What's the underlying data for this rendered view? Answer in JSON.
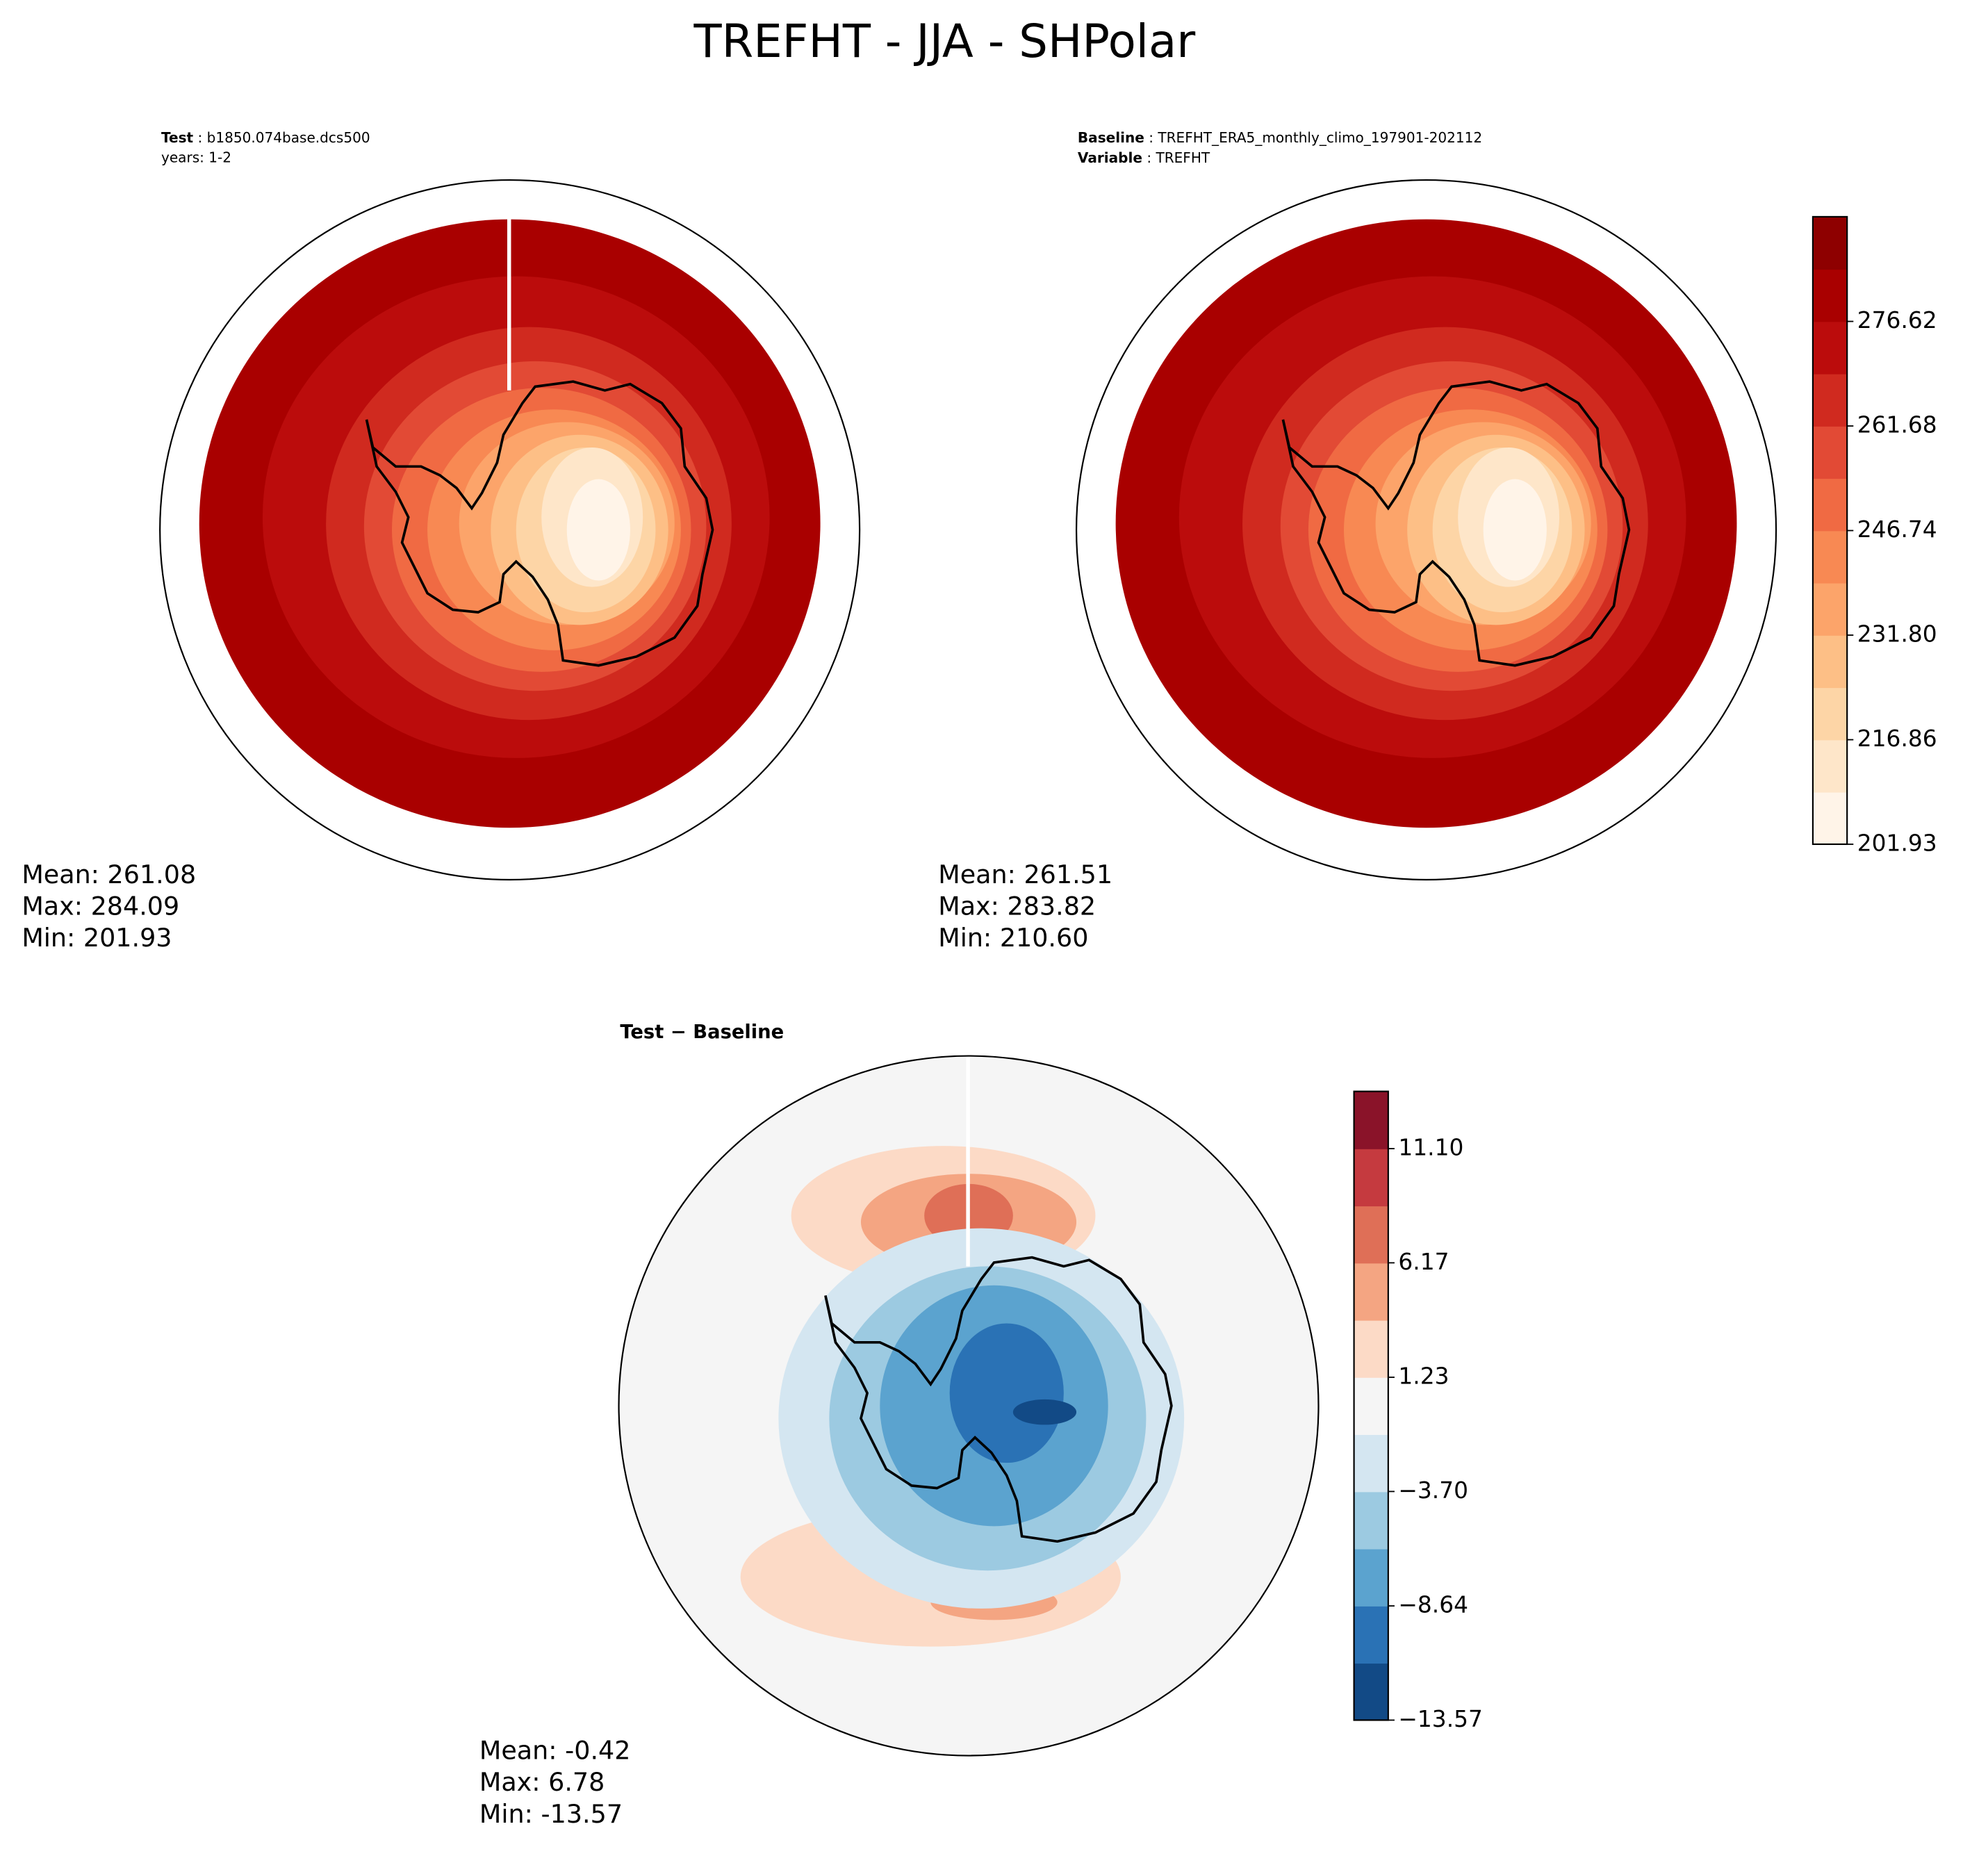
{
  "title": "TREFHT - JJA - SHPolar",
  "test": {
    "label": "Test",
    "name": "b1850.074base.dcs500",
    "years": "years: 1-2",
    "stats": [
      "Mean: 261.08",
      "Max: 284.09",
      "Min: 201.93"
    ]
  },
  "baseline": {
    "label": "Baseline",
    "name": "TREFHT_ERA5_monthly_climo_197901-202112",
    "variable_label": "Variable",
    "variable": "TREFHT",
    "stats": [
      "Mean: 261.51",
      "Max: 283.82",
      "Min: 210.60"
    ]
  },
  "diff": {
    "label": "Test − Baseline",
    "stats": [
      "Mean: -0.42",
      "Max:  6.78",
      "Min: -13.57"
    ]
  },
  "colorbar_main": {
    "ylim": [
      201.93,
      291.57
    ],
    "colors": [
      "#fff4e8",
      "#fee6c9",
      "#fdd5a6",
      "#fdbf86",
      "#fca46a",
      "#f88953",
      "#f06a43",
      "#e24a35",
      "#d02a1f",
      "#bb0c0c",
      "#a90000",
      "#8e0000"
    ],
    "yticks": [
      {
        "value": 201.93,
        "label": "201.93"
      },
      {
        "value": 216.86,
        "label": "216.86"
      },
      {
        "value": 231.8,
        "label": "231.80"
      },
      {
        "value": 246.74,
        "label": "246.74"
      },
      {
        "value": 261.68,
        "label": "261.68"
      },
      {
        "value": 276.62,
        "label": "276.62"
      }
    ]
  },
  "colorbar_diff": {
    "ylim": [
      -13.57,
      13.57
    ],
    "colors": [
      "#124a86",
      "#2a72b5",
      "#5ba3cf",
      "#9ccae1",
      "#d4e6f1",
      "#f5f5f5",
      "#fcdac6",
      "#f4a582",
      "#df6f57",
      "#c53a3f",
      "#8a1329"
    ],
    "yticks": [
      {
        "value": -13.57,
        "label": "−13.57"
      },
      {
        "value": -8.64,
        "label": "−8.64"
      },
      {
        "value": -3.7,
        "label": "−3.70"
      },
      {
        "value": 1.23,
        "label": "1.23"
      },
      {
        "value": 6.17,
        "label": "6.17"
      },
      {
        "value": 11.1,
        "label": "11.10"
      }
    ]
  }
}
